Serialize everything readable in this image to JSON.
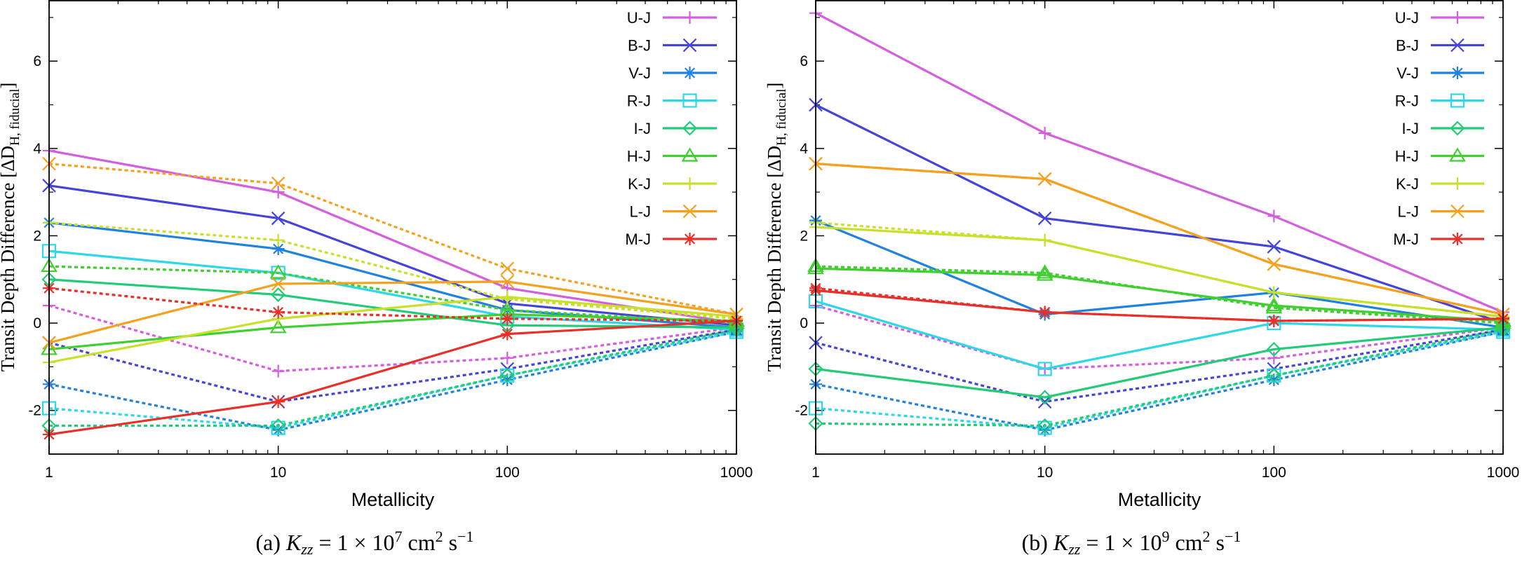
{
  "chart_data": [
    {
      "type": "line",
      "caption": {
        "prefix": "(a)",
        "formula": "K_zz = 1 × 10^7 cm^2 s^-1"
      },
      "xlabel": "Metallicity",
      "ylabel": "Transit Depth Difference [ΔD_H, fiducial]",
      "x": [
        1,
        10,
        100,
        1000
      ],
      "x_ticks": [
        "1",
        "10",
        "100",
        "1000"
      ],
      "y_ticks": [
        "-2",
        "0",
        "2",
        "4",
        "6"
      ],
      "xlim": [
        1,
        1000
      ],
      "ylim": [
        -3,
        7.4
      ],
      "xscale": "log",
      "legend": [
        "U-J",
        "B-J",
        "V-J",
        "R-J",
        "I-J",
        "H-J",
        "K-J",
        "L-J",
        "M-J"
      ],
      "series": [
        {
          "name": "U-J",
          "color": "#d55ee0",
          "marker": "plus",
          "solid": [
            3.95,
            3.0,
            0.8,
            0.0
          ],
          "dotted": [
            0.4,
            -1.1,
            -0.8,
            -0.1
          ]
        },
        {
          "name": "B-J",
          "color": "#4444d8",
          "marker": "x",
          "solid": [
            3.15,
            2.4,
            0.45,
            -0.05
          ],
          "dotted": [
            -0.45,
            -1.8,
            -1.05,
            -0.15
          ]
        },
        {
          "name": "V-J",
          "color": "#1f82e0",
          "marker": "star",
          "solid": [
            2.3,
            1.7,
            0.3,
            -0.1
          ],
          "dotted": [
            -1.4,
            -2.45,
            -1.3,
            -0.2
          ]
        },
        {
          "name": "R-J",
          "color": "#2cd8e8",
          "marker": "square",
          "solid": [
            1.65,
            1.15,
            0.15,
            -0.15
          ],
          "dotted": [
            -1.95,
            -2.4,
            -1.2,
            -0.2
          ]
        },
        {
          "name": "I-J",
          "color": "#22cc77",
          "marker": "diamond",
          "solid": [
            1.0,
            0.65,
            -0.05,
            -0.1
          ],
          "dotted": [
            -2.35,
            -2.35,
            -1.2,
            -0.15
          ]
        },
        {
          "name": "H-J",
          "color": "#3fcf2f",
          "marker": "triangle",
          "solid": [
            -0.6,
            -0.1,
            0.2,
            0.05
          ],
          "dotted": [
            1.3,
            1.15,
            0.3,
            0.0
          ]
        },
        {
          "name": "K-J",
          "color": "#c8e02a",
          "marker": "plus",
          "solid": [
            -0.9,
            0.1,
            0.6,
            0.15
          ],
          "dotted": [
            2.3,
            1.9,
            0.55,
            0.1
          ]
        },
        {
          "name": "L-J",
          "color": "#f5a11e",
          "marker": "x",
          "solid": [
            -0.45,
            0.9,
            0.95,
            0.2
          ],
          "dotted": [
            3.65,
            3.2,
            1.25,
            0.2
          ]
        },
        {
          "name": "M-J",
          "color": "#e8302a",
          "marker": "star",
          "solid": [
            -2.55,
            -1.8,
            -0.25,
            0.05
          ],
          "dotted": [
            0.8,
            0.25,
            0.1,
            0.05
          ]
        }
      ]
    },
    {
      "type": "line",
      "caption": {
        "prefix": "(b)",
        "formula": "K_zz = 1 × 10^9 cm^2 s^-1"
      },
      "xlabel": "Metallicity",
      "ylabel": "Transit Depth Difference [ΔD_H, fiducial]",
      "x": [
        1,
        10,
        100,
        1000
      ],
      "x_ticks": [
        "1",
        "10",
        "100",
        "1000"
      ],
      "y_ticks": [
        "-2",
        "0",
        "2",
        "4",
        "6"
      ],
      "xlim": [
        1,
        1000
      ],
      "ylim": [
        -3,
        7.4
      ],
      "xscale": "log",
      "legend": [
        "U-J",
        "B-J",
        "V-J",
        "R-J",
        "I-J",
        "H-J",
        "K-J",
        "L-J",
        "M-J"
      ],
      "series": [
        {
          "name": "U-J",
          "color": "#d55ee0",
          "marker": "plus",
          "solid": [
            7.1,
            4.35,
            2.45,
            0.25
          ],
          "dotted": [
            0.4,
            -1.05,
            -0.8,
            -0.1
          ]
        },
        {
          "name": "B-J",
          "color": "#4444d8",
          "marker": "x",
          "solid": [
            5.0,
            2.4,
            1.75,
            0.0
          ],
          "dotted": [
            -0.45,
            -1.8,
            -1.05,
            -0.15
          ]
        },
        {
          "name": "V-J",
          "color": "#1f82e0",
          "marker": "star",
          "solid": [
            2.35,
            0.2,
            0.7,
            -0.1
          ],
          "dotted": [
            -1.4,
            -2.45,
            -1.3,
            -0.2
          ]
        },
        {
          "name": "R-J",
          "color": "#2cd8e8",
          "marker": "square",
          "solid": [
            0.5,
            -1.05,
            0.0,
            -0.15
          ],
          "dotted": [
            -1.95,
            -2.4,
            -1.2,
            -0.2
          ]
        },
        {
          "name": "I-J",
          "color": "#22cc77",
          "marker": "diamond",
          "solid": [
            -1.05,
            -1.7,
            -0.6,
            -0.1
          ],
          "dotted": [
            -2.3,
            -2.35,
            -1.2,
            -0.15
          ]
        },
        {
          "name": "H-J",
          "color": "#3fcf2f",
          "marker": "triangle",
          "solid": [
            1.25,
            1.1,
            0.4,
            0.05
          ],
          "dotted": [
            1.3,
            1.15,
            0.35,
            0.0
          ]
        },
        {
          "name": "K-J",
          "color": "#c8e02a",
          "marker": "plus",
          "solid": [
            2.2,
            1.9,
            0.7,
            0.15
          ],
          "dotted": [
            2.3,
            1.9,
            0.7,
            0.15
          ]
        },
        {
          "name": "L-J",
          "color": "#f5a11e",
          "marker": "x",
          "solid": [
            3.65,
            3.3,
            1.35,
            0.2
          ],
          "dotted": [
            3.65,
            3.3,
            1.35,
            0.2
          ]
        },
        {
          "name": "M-J",
          "color": "#e8302a",
          "marker": "star",
          "solid": [
            0.75,
            0.25,
            0.05,
            0.1
          ],
          "dotted": [
            0.8,
            0.25,
            0.05,
            0.1
          ]
        }
      ]
    }
  ]
}
